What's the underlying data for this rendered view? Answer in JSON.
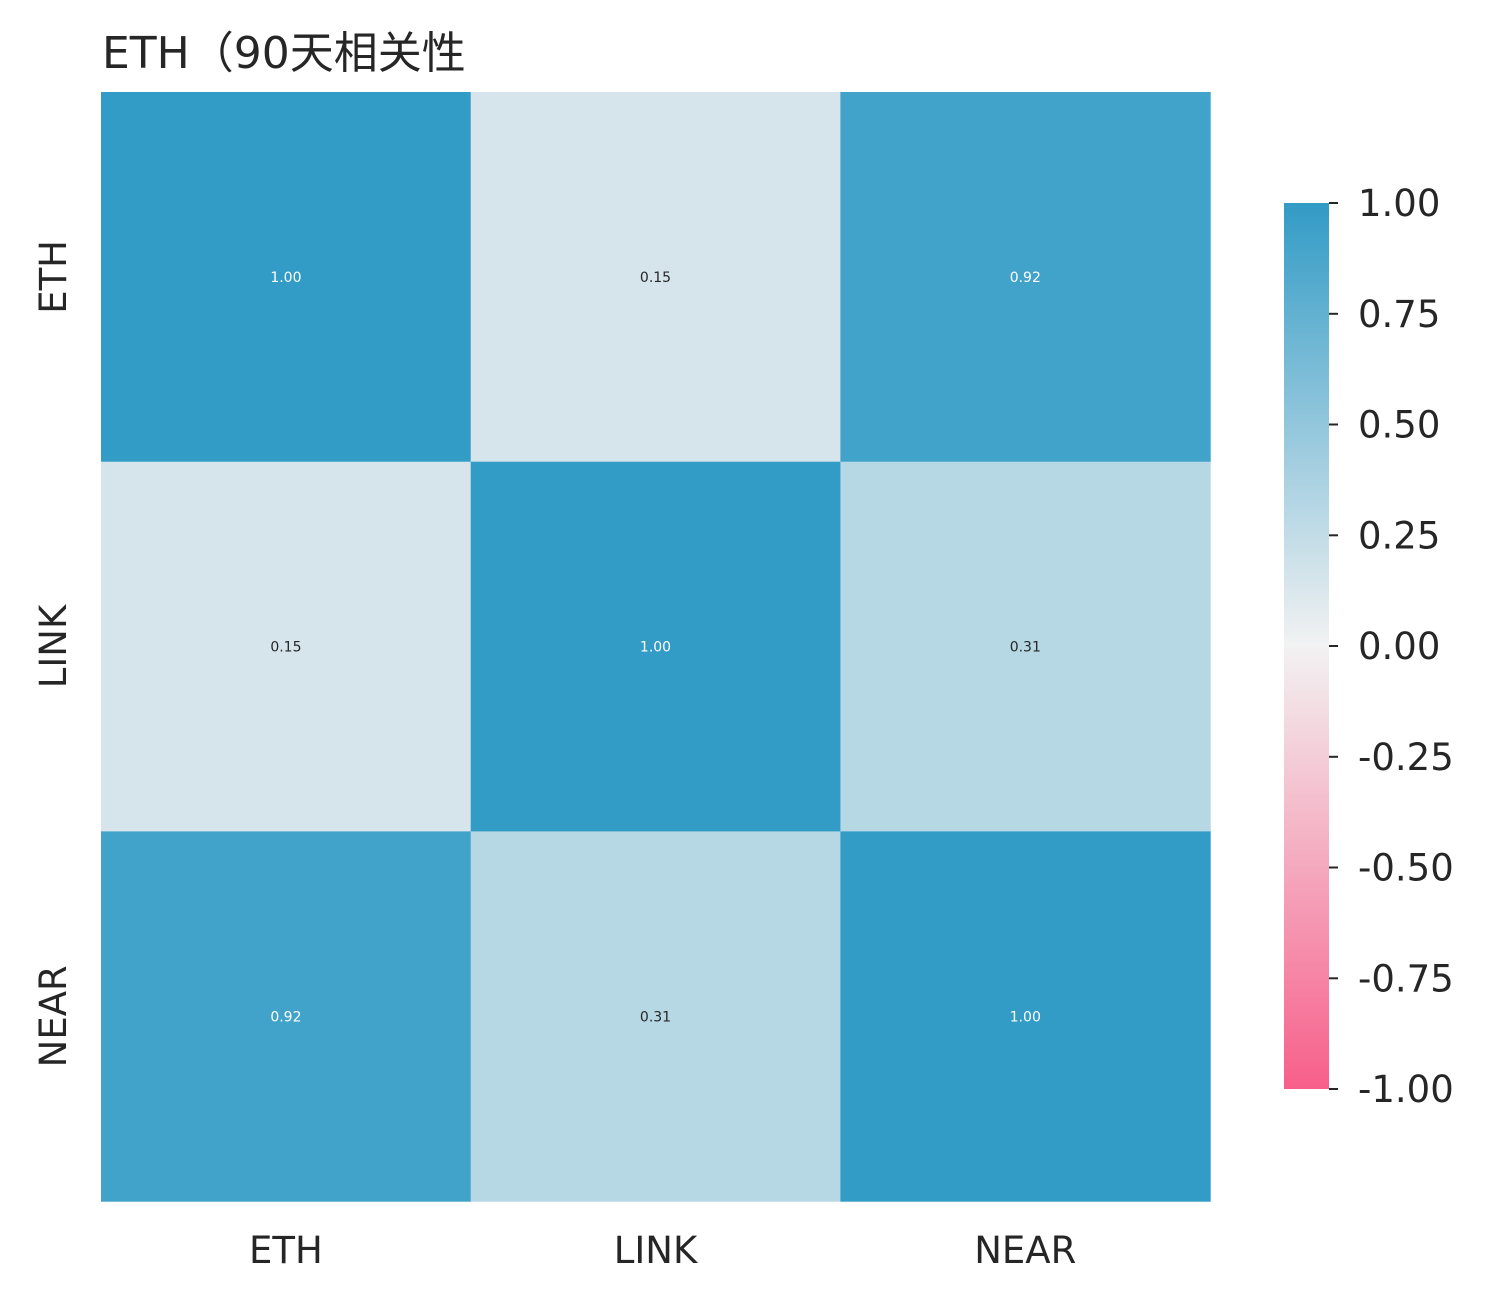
{
  "chart_data": {
    "type": "heatmap",
    "title": "ETH（90天相关性",
    "rows": [
      "ETH",
      "LINK",
      "NEAR"
    ],
    "columns": [
      "ETH",
      "LINK",
      "NEAR"
    ],
    "values": [
      [
        1.0,
        0.15,
        0.92
      ],
      [
        0.15,
        1.0,
        0.31
      ],
      [
        0.92,
        0.31,
        1.0
      ]
    ],
    "cell_labels": [
      [
        "1.00",
        "0.15",
        "0.92"
      ],
      [
        "0.15",
        "1.00",
        "0.31"
      ],
      [
        "0.92",
        "0.31",
        "1.00"
      ]
    ],
    "colorbar": {
      "vmin": -1.0,
      "vmax": 1.0,
      "ticks": [
        1.0,
        0.75,
        0.5,
        0.25,
        0.0,
        -0.25,
        -0.5,
        -0.75,
        -1.0
      ],
      "tick_labels": [
        "1.00",
        "0.75",
        "0.50",
        "0.25",
        "0.00",
        "-0.25",
        "-0.50",
        "-0.75",
        "-1.00"
      ],
      "low_color": "#f75f8a",
      "mid_color": "#f2f2f2",
      "high_color": "#329bc6"
    },
    "grid": false,
    "legend": "colorbar-right"
  }
}
